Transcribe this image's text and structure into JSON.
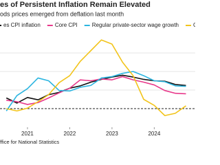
{
  "chart_data": {
    "type": "line",
    "title": "es of Persistent Inflation Remain Elevated",
    "subtitle": "ods prices emerged from deflation last month",
    "source": "ffice for National Statistics",
    "x": [
      2020.5,
      2020.75,
      2021,
      2021.25,
      2021.5,
      2021.75,
      2022,
      2022.25,
      2022.5,
      2022.75,
      2023,
      2023.25,
      2023.5,
      2023.75,
      2024,
      2024.25,
      2024.5,
      2024.75
    ],
    "xlim": [
      2020.35,
      2024.97
    ],
    "xticks": [
      {
        "value": 2021,
        "label": "2021"
      },
      {
        "value": 2022,
        "label": "2022"
      },
      {
        "value": 2023,
        "label": "2023"
      },
      {
        "value": 2024,
        "label": "2024"
      }
    ],
    "ylim": [
      -4,
      16
    ],
    "yticks": [
      0,
      4,
      8,
      12
    ],
    "grid": true,
    "series": [
      {
        "name": "es CPI inflation",
        "color": "#111111",
        "values": [
          2.3,
          1.2,
          2.4,
          1.9,
          3.0,
          3.5,
          4.4,
          4.9,
          5.7,
          6.3,
          6.8,
          7.2,
          6.8,
          6.3,
          6.0,
          5.9,
          5.2,
          5.0
        ]
      },
      {
        "name": "Core CPI",
        "color": "#e8398b",
        "values": [
          1.8,
          1.5,
          0.9,
          1.3,
          2.3,
          3.4,
          4.4,
          6.2,
          6.0,
          6.4,
          6.2,
          6.9,
          6.2,
          5.7,
          5.1,
          3.9,
          3.3,
          3.2
        ]
      },
      {
        "name": "Regular private-sector wage growth",
        "color": "#2bb5e0",
        "values": [
          -0.5,
          2.8,
          4.3,
          6.6,
          6.0,
          3.9,
          3.8,
          4.6,
          5.0,
          6.6,
          6.9,
          7.6,
          8.0,
          7.1,
          6.0,
          5.8,
          4.9,
          4.8
        ]
      },
      {
        "name": "Goo",
        "color": "#f2c41b",
        "values": [
          0.0,
          -0.5,
          0.1,
          1.5,
          3.0,
          5.6,
          7.1,
          10.2,
          12.5,
          14.8,
          13.9,
          10.0,
          7.1,
          2.0,
          0.7,
          -1.5,
          -1.0,
          0.6
        ]
      }
    ]
  }
}
